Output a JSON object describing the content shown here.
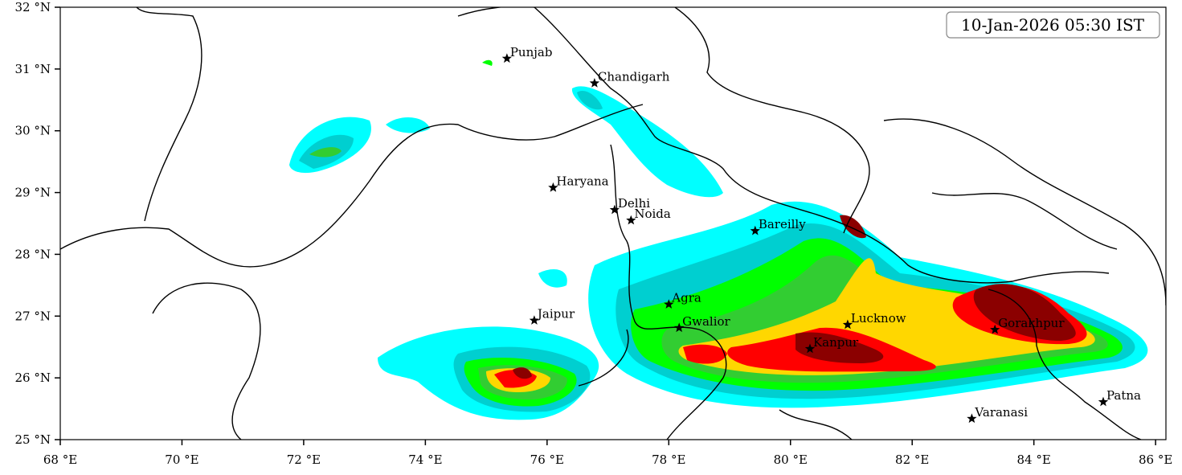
{
  "map": {
    "timestamp": "10-Jan-2026 05:30 IST",
    "xlim": [
      68,
      86.17
    ],
    "ylim": [
      25,
      32
    ],
    "xticks": [
      {
        "value": 68,
        "label": "68 °E"
      },
      {
        "value": 70,
        "label": "70 °E"
      },
      {
        "value": 72,
        "label": "72 °E"
      },
      {
        "value": 74,
        "label": "74 °E"
      },
      {
        "value": 76,
        "label": "76 °E"
      },
      {
        "value": 78,
        "label": "78 °E"
      },
      {
        "value": 80,
        "label": "80 °E"
      },
      {
        "value": 82,
        "label": "82 °E"
      },
      {
        "value": 84,
        "label": "84 °E"
      },
      {
        "value": 86,
        "label": "86 °E"
      }
    ],
    "yticks": [
      {
        "value": 25,
        "label": "25 °N"
      },
      {
        "value": 26,
        "label": "26 °N"
      },
      {
        "value": 27,
        "label": "27 °N"
      },
      {
        "value": 28,
        "label": "28 °N"
      },
      {
        "value": 29,
        "label": "29 °N"
      },
      {
        "value": 30,
        "label": "30 °N"
      },
      {
        "value": 31,
        "label": "31 °N"
      },
      {
        "value": 32,
        "label": "32 °N"
      }
    ],
    "cities": [
      {
        "name": "Punjab",
        "lon": 75.34,
        "lat": 31.17
      },
      {
        "name": "Chandigarh",
        "lon": 76.78,
        "lat": 30.77
      },
      {
        "name": "Haryana",
        "lon": 76.1,
        "lat": 29.08
      },
      {
        "name": "Delhi",
        "lon": 77.11,
        "lat": 28.72
      },
      {
        "name": "Noida",
        "lon": 77.38,
        "lat": 28.55
      },
      {
        "name": "Bareilly",
        "lon": 79.42,
        "lat": 28.38
      },
      {
        "name": "Agra",
        "lon": 78.0,
        "lat": 27.19
      },
      {
        "name": "Jaipur",
        "lon": 75.79,
        "lat": 26.93
      },
      {
        "name": "Gwalior",
        "lon": 78.17,
        "lat": 26.81
      },
      {
        "name": "Lucknow",
        "lon": 80.94,
        "lat": 26.86
      },
      {
        "name": "Kanpur",
        "lon": 80.32,
        "lat": 26.47
      },
      {
        "name": "Gorakhpur",
        "lon": 83.36,
        "lat": 26.78
      },
      {
        "name": "Varanasi",
        "lon": 82.98,
        "lat": 25.34
      },
      {
        "name": "Patna",
        "lon": 85.14,
        "lat": 25.61
      }
    ]
  }
}
